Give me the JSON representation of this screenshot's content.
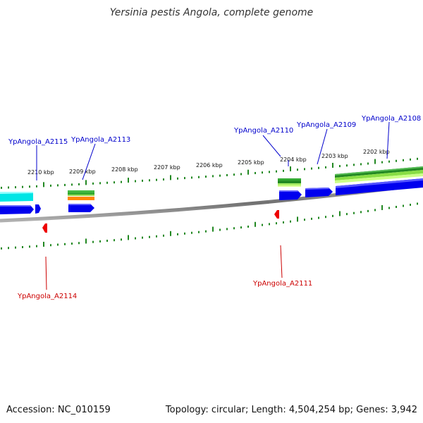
{
  "title": "Yersinia pestis Angola, complete genome",
  "footer": {
    "accession": "Accession: NC_010159",
    "summary": "Topology: circular; Length: 4,504,254 bp; Genes: 3,942"
  },
  "colors": {
    "plus_label": "#0000cc",
    "minus_label": "#cc0000",
    "tick": "#228822",
    "backbone": "#808080",
    "cds": "#0000ee",
    "cds_alt": "#00eeee",
    "rna_green": "#33aa33",
    "rna_orange": "#ff8800"
  },
  "scale_ticks": [
    {
      "label": "2210 kbp"
    },
    {
      "label": "2209 kbp"
    },
    {
      "label": "2208 kbp"
    },
    {
      "label": "2207 kbp"
    },
    {
      "label": "2206 kbp"
    },
    {
      "label": "2205 kbp"
    },
    {
      "label": "2204 kbp"
    },
    {
      "label": "2203 kbp"
    },
    {
      "label": "2202 kbp"
    }
  ],
  "genes_plus": [
    {
      "label": "YpAngola_A2115"
    },
    {
      "label": "YpAngola_A2113"
    },
    {
      "label": "YpAngola_A2110"
    },
    {
      "label": "YpAngola_A2109"
    },
    {
      "label": "YpAngola_A2108"
    }
  ],
  "genes_minus": [
    {
      "label": "YpAngola_A2114"
    },
    {
      "label": "YpAngola_A2111"
    }
  ]
}
